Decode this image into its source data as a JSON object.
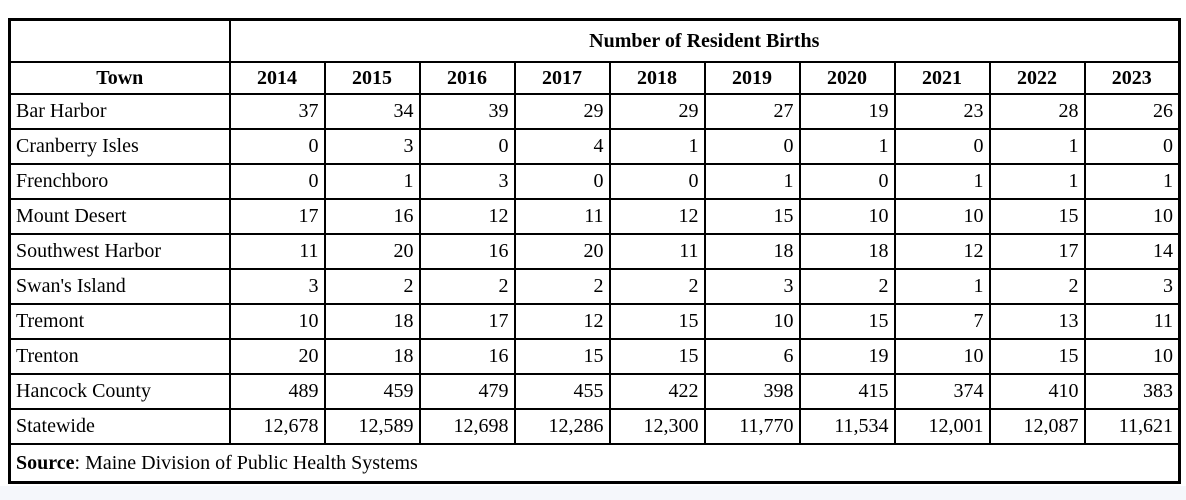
{
  "colors": {
    "border": "#000000",
    "page_background": "#ffffff",
    "corner_divider": "#aaaaaa",
    "footer_strip": "#f5f7fb"
  },
  "chart_data": {
    "type": "table",
    "title": "Number of Resident Births",
    "row_header_label": "Town",
    "categories": [
      "2014",
      "2015",
      "2016",
      "2017",
      "2018",
      "2019",
      "2020",
      "2021",
      "2022",
      "2023"
    ],
    "series": [
      {
        "name": "Bar Harbor",
        "values": [
          37,
          34,
          39,
          29,
          29,
          27,
          19,
          23,
          28,
          26
        ]
      },
      {
        "name": "Cranberry Isles",
        "values": [
          0,
          3,
          0,
          4,
          1,
          0,
          1,
          0,
          1,
          0
        ]
      },
      {
        "name": "Frenchboro",
        "values": [
          0,
          1,
          3,
          0,
          0,
          1,
          0,
          1,
          1,
          1
        ]
      },
      {
        "name": "Mount Desert",
        "values": [
          17,
          16,
          12,
          11,
          12,
          15,
          10,
          10,
          15,
          10
        ]
      },
      {
        "name": "Southwest Harbor",
        "values": [
          11,
          20,
          16,
          20,
          11,
          18,
          18,
          12,
          17,
          14
        ]
      },
      {
        "name": "Swan's Island",
        "values": [
          3,
          2,
          2,
          2,
          2,
          3,
          2,
          1,
          2,
          3
        ]
      },
      {
        "name": "Tremont",
        "values": [
          10,
          18,
          17,
          12,
          15,
          10,
          15,
          7,
          13,
          11
        ]
      },
      {
        "name": "Trenton",
        "values": [
          20,
          18,
          16,
          15,
          15,
          6,
          19,
          10,
          15,
          10
        ]
      },
      {
        "name": "Hancock County",
        "values": [
          489,
          459,
          479,
          455,
          422,
          398,
          415,
          374,
          410,
          383
        ]
      },
      {
        "name": "Statewide",
        "values": [
          12678,
          12589,
          12698,
          12286,
          12300,
          11770,
          11534,
          12001,
          12087,
          11621
        ]
      }
    ],
    "source_label": "Source",
    "source_text": ": Maine Division of Public Health Systems"
  }
}
